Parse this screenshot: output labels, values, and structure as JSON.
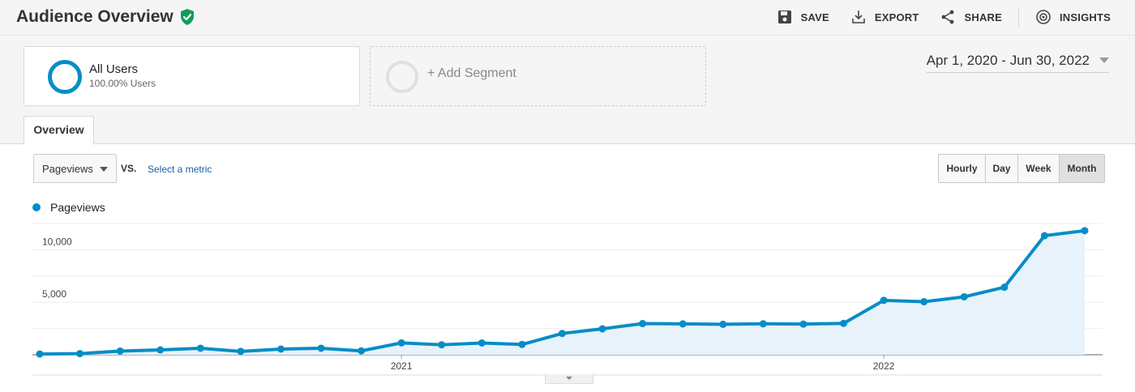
{
  "header": {
    "title": "Audience Overview",
    "verified_icon": "shield-check-icon",
    "actions": [
      {
        "label": "SAVE",
        "icon": "save-icon"
      },
      {
        "label": "EXPORT",
        "icon": "export-icon"
      },
      {
        "label": "SHARE",
        "icon": "share-icon"
      },
      {
        "label": "INSIGHTS",
        "icon": "insights-icon"
      }
    ]
  },
  "segments": {
    "all_users": {
      "name": "All Users",
      "sub": "100.00% Users"
    },
    "add_segment": {
      "label": "+ Add Segment"
    }
  },
  "date_range": {
    "label": "Apr 1, 2020 - Jun 30, 2022"
  },
  "tabs": [
    {
      "label": "Overview",
      "active": true
    }
  ],
  "controls": {
    "metric": "Pageviews",
    "vs": "VS.",
    "select_metric": "Select a metric",
    "periods": [
      "Hourly",
      "Day",
      "Week",
      "Month"
    ],
    "active_period": "Month"
  },
  "colors": {
    "series": "#058dc7",
    "fill": "#e8f2fa",
    "grid": "#eeeeee"
  },
  "chart_data": {
    "type": "area",
    "series": [
      {
        "name": "Pageviews",
        "values": [
          70,
          110,
          350,
          460,
          620,
          320,
          540,
          620,
          370,
          1130,
          950,
          1120,
          980,
          2030,
          2470,
          2970,
          2940,
          2900,
          2950,
          2920,
          2990,
          5180,
          5050,
          5520,
          6430,
          11340,
          11820
        ]
      }
    ],
    "x_tick_labels": [
      {
        "label": "2021",
        "index": 9
      },
      {
        "label": "2022",
        "index": 21
      }
    ],
    "y_tick_labels": [
      "5,000",
      "10,000"
    ],
    "y_ticks": [
      5000,
      10000
    ],
    "ylim": [
      0,
      12500
    ],
    "legend": "top-left"
  }
}
